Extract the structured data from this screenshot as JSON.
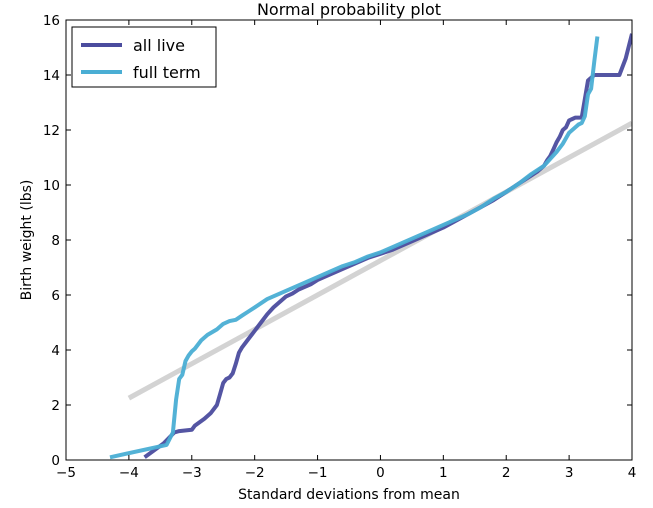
{
  "chart_data": {
    "type": "line",
    "title": "Normal probability plot",
    "xlabel": "Standard deviations from mean",
    "ylabel": "Birth weight (lbs)",
    "xlim": [
      -5,
      4
    ],
    "ylim": [
      0,
      16
    ],
    "xticks": [
      -5,
      -4,
      -3,
      -2,
      -1,
      0,
      1,
      2,
      3,
      4
    ],
    "yticks": [
      0,
      2,
      4,
      6,
      8,
      10,
      12,
      14,
      16
    ],
    "xtick_labels": [
      "−5",
      "−4",
      "−3",
      "−2",
      "−1",
      "0",
      "1",
      "2",
      "3",
      "4"
    ],
    "ytick_labels": [
      "0",
      "2",
      "4",
      "6",
      "8",
      "10",
      "12",
      "14",
      "16"
    ],
    "legend_position": "top-left",
    "grid": false,
    "series": [
      {
        "name": "all live",
        "color": "#4b4c9e",
        "x": [
          -3.75,
          -3.45,
          -3.3,
          -3.28,
          -3.2,
          -3.0,
          -2.95,
          -2.8,
          -2.7,
          -2.6,
          -2.55,
          -2.5,
          -2.45,
          -2.4,
          -2.35,
          -2.3,
          -2.25,
          -2.2,
          -2.1,
          -2.0,
          -1.9,
          -1.8,
          -1.7,
          -1.6,
          -1.5,
          -1.4,
          -1.3,
          -1.2,
          -1.1,
          -1.0,
          -0.8,
          -0.6,
          -0.4,
          -0.2,
          0.0,
          0.2,
          0.4,
          0.6,
          0.8,
          1.0,
          1.2,
          1.4,
          1.6,
          1.8,
          2.0,
          2.2,
          2.4,
          2.5,
          2.6,
          2.65,
          2.7,
          2.75,
          2.8,
          2.85,
          2.9,
          2.95,
          3.0,
          3.05,
          3.1,
          3.2,
          3.3,
          3.4,
          3.5,
          3.6,
          3.7,
          3.8,
          3.9,
          4.0
        ],
        "y": [
          0.1,
          0.6,
          0.95,
          1.0,
          1.05,
          1.1,
          1.25,
          1.5,
          1.7,
          2.0,
          2.4,
          2.8,
          2.95,
          3.0,
          3.15,
          3.5,
          3.9,
          4.1,
          4.4,
          4.7,
          5.0,
          5.3,
          5.55,
          5.75,
          5.95,
          6.05,
          6.2,
          6.3,
          6.4,
          6.55,
          6.75,
          6.95,
          7.15,
          7.35,
          7.5,
          7.65,
          7.85,
          8.05,
          8.25,
          8.45,
          8.7,
          8.95,
          9.2,
          9.45,
          9.75,
          10.05,
          10.35,
          10.5,
          10.7,
          10.9,
          11.05,
          11.3,
          11.55,
          11.75,
          12.0,
          12.1,
          12.35,
          12.4,
          12.45,
          12.45,
          13.8,
          14.0,
          14.0,
          14.0,
          14.0,
          14.0,
          14.6,
          15.5
        ]
      },
      {
        "name": "full term",
        "color": "#4aaed4",
        "x": [
          -4.3,
          -3.4,
          -3.3,
          -3.25,
          -3.2,
          -3.15,
          -3.1,
          -3.05,
          -3.0,
          -2.95,
          -2.85,
          -2.75,
          -2.6,
          -2.5,
          -2.4,
          -2.3,
          -2.2,
          -2.1,
          -2.0,
          -1.8,
          -1.6,
          -1.4,
          -1.2,
          -1.0,
          -0.8,
          -0.6,
          -0.4,
          -0.2,
          0.0,
          0.2,
          0.4,
          0.6,
          0.8,
          1.0,
          1.2,
          1.4,
          1.6,
          1.8,
          2.0,
          2.2,
          2.4,
          2.6,
          2.7,
          2.8,
          2.9,
          3.0,
          3.1,
          3.15,
          3.2,
          3.25,
          3.3,
          3.35,
          3.4,
          3.45
        ],
        "y": [
          0.1,
          0.55,
          1.0,
          2.2,
          2.95,
          3.1,
          3.6,
          3.8,
          3.95,
          4.05,
          4.35,
          4.55,
          4.75,
          4.95,
          5.05,
          5.1,
          5.25,
          5.4,
          5.55,
          5.85,
          6.05,
          6.25,
          6.45,
          6.65,
          6.85,
          7.05,
          7.2,
          7.4,
          7.55,
          7.75,
          7.95,
          8.15,
          8.35,
          8.55,
          8.75,
          8.95,
          9.2,
          9.5,
          9.75,
          10.05,
          10.4,
          10.7,
          10.95,
          11.2,
          11.5,
          11.9,
          12.1,
          12.2,
          12.25,
          12.5,
          13.3,
          13.5,
          14.5,
          15.4
        ]
      }
    ],
    "reference_line": {
      "color": "#d3d3d3",
      "x": [
        -4.0,
        4.0
      ],
      "y": [
        2.25,
        12.25
      ]
    }
  }
}
